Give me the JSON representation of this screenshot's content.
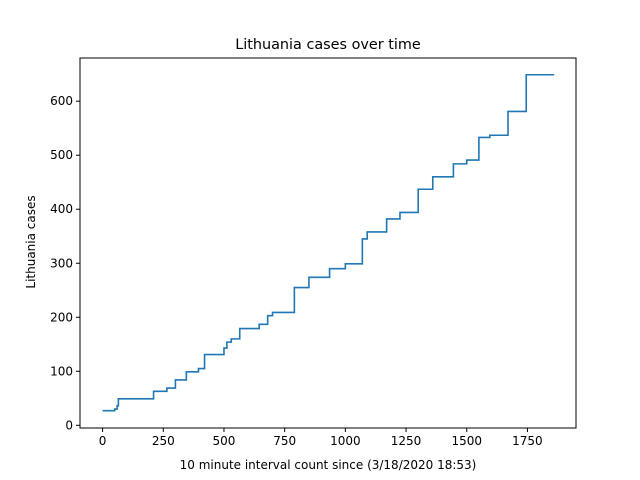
{
  "chart_data": {
    "type": "line",
    "title": "Lithuania cases over time",
    "xlabel": "10 minute interval count since (3/18/2020 18:53)",
    "ylabel": "Lithuania cases",
    "xlim": [
      -93,
      1950
    ],
    "ylim": [
      -5,
      680
    ],
    "xticks": [
      0,
      250,
      500,
      750,
      1000,
      1250,
      1500,
      1750
    ],
    "yticks": [
      0,
      100,
      200,
      300,
      400,
      500,
      600
    ],
    "grid": false,
    "line_color": "#1f77b4",
    "series": [
      {
        "step": "post",
        "x": [
          0,
          50,
          60,
          65,
          140,
          210,
          265,
          300,
          345,
          395,
          420,
          500,
          512,
          530,
          565,
          590,
          645,
          680,
          700,
          790,
          850,
          935,
          1000,
          1070,
          1090,
          1170,
          1225,
          1300,
          1360,
          1445,
          1500,
          1550,
          1595,
          1670,
          1745,
          1860
        ],
        "y": [
          27,
          30,
          36,
          49,
          49,
          63,
          69,
          84,
          99,
          105,
          131,
          143,
          154,
          160,
          179,
          179,
          187,
          203,
          209,
          255,
          274,
          290,
          299,
          345,
          358,
          382,
          394,
          437,
          460,
          484,
          491,
          533,
          537,
          581,
          649,
          649
        ]
      }
    ]
  }
}
